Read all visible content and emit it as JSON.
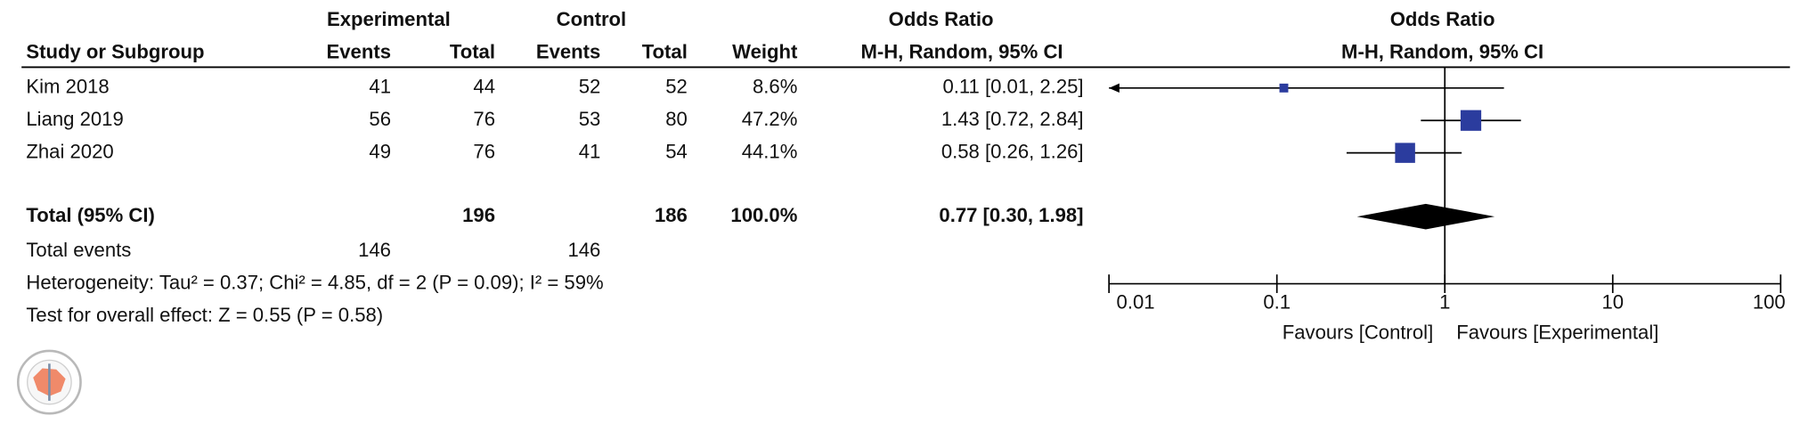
{
  "chart_data": {
    "type": "forest",
    "group_headers": [
      "Experimental",
      "Control",
      "Odds Ratio",
      "Odds Ratio"
    ],
    "columns": [
      "Study or Subgroup",
      "Events",
      "Total",
      "Events",
      "Total",
      "Weight",
      "M-H, Random, 95% CI",
      "M-H, Random, 95% CI"
    ],
    "studies": [
      {
        "name": "Kim 2018",
        "exp_events": 41,
        "exp_total": 44,
        "ctrl_events": 52,
        "ctrl_total": 52,
        "weight": 8.6,
        "weight_label": "8.6%",
        "or": 0.11,
        "lower": 0.01,
        "upper": 2.25,
        "ci_label": "0.11 [0.01, 2.25]"
      },
      {
        "name": "Liang 2019",
        "exp_events": 56,
        "exp_total": 76,
        "ctrl_events": 53,
        "ctrl_total": 80,
        "weight": 47.2,
        "weight_label": "47.2%",
        "or": 1.43,
        "lower": 0.72,
        "upper": 2.84,
        "ci_label": "1.43 [0.72, 2.84]"
      },
      {
        "name": "Zhai 2020",
        "exp_events": 49,
        "exp_total": 76,
        "ctrl_events": 41,
        "ctrl_total": 54,
        "weight": 44.1,
        "weight_label": "44.1%",
        "or": 0.58,
        "lower": 0.26,
        "upper": 1.26,
        "ci_label": "0.58 [0.26, 1.26]"
      }
    ],
    "total": {
      "name": "Total (95% CI)",
      "exp_total": 196,
      "ctrl_total": 186,
      "weight": 100,
      "weight_label": "100.0%",
      "or": 0.77,
      "lower": 0.3,
      "upper": 1.98,
      "ci_label": "0.77 [0.30, 1.98]"
    },
    "total_events": {
      "name": "Total events",
      "exp_events": 146,
      "ctrl_events": 146
    },
    "heterogeneity": "Heterogeneity: Tau² = 0.37; Chi² = 4.85, df = 2 (P = 0.09); I² = 59%",
    "overall_effect": "Test for overall effect: Z = 0.55 (P = 0.58)",
    "log_x": true,
    "xlim": [
      0.01,
      100
    ],
    "xticks": [
      0.01,
      0.1,
      1,
      10,
      100
    ],
    "xlabel_left": "Favours [Control]",
    "xlabel_right": "Favours [Experimental]",
    "study_color": "#2b3c9e",
    "total_color": "#000000"
  }
}
